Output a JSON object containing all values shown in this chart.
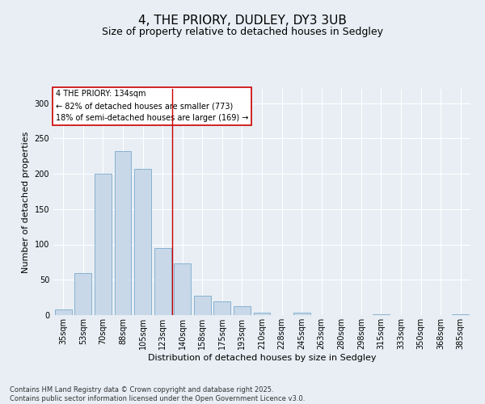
{
  "title": "4, THE PRIORY, DUDLEY, DY3 3UB",
  "subtitle": "Size of property relative to detached houses in Sedgley",
  "xlabel": "Distribution of detached houses by size in Sedgley",
  "ylabel": "Number of detached properties",
  "categories": [
    "35sqm",
    "53sqm",
    "70sqm",
    "88sqm",
    "105sqm",
    "123sqm",
    "140sqm",
    "158sqm",
    "175sqm",
    "193sqm",
    "210sqm",
    "228sqm",
    "245sqm",
    "263sqm",
    "280sqm",
    "298sqm",
    "315sqm",
    "333sqm",
    "350sqm",
    "368sqm",
    "385sqm"
  ],
  "values": [
    8,
    60,
    200,
    232,
    207,
    95,
    73,
    27,
    19,
    13,
    4,
    0,
    4,
    0,
    0,
    0,
    1,
    0,
    0,
    0,
    1
  ],
  "bar_color": "#c8d8e8",
  "bar_edge_color": "#7aaacc",
  "vline_x": 5.5,
  "vline_color": "#cc0000",
  "annotation_text": "4 THE PRIORY: 134sqm\n← 82% of detached houses are smaller (773)\n18% of semi-detached houses are larger (169) →",
  "annotation_box_color": "#ffffff",
  "annotation_box_edge": "#cc0000",
  "ylim": [
    0,
    320
  ],
  "yticks": [
    0,
    50,
    100,
    150,
    200,
    250,
    300
  ],
  "background_color": "#e8eef4",
  "footer_text": "Contains HM Land Registry data © Crown copyright and database right 2025.\nContains public sector information licensed under the Open Government Licence v3.0.",
  "title_fontsize": 11,
  "subtitle_fontsize": 9,
  "xlabel_fontsize": 8,
  "ylabel_fontsize": 8,
  "tick_fontsize": 7,
  "annot_fontsize": 7,
  "footer_fontsize": 6
}
